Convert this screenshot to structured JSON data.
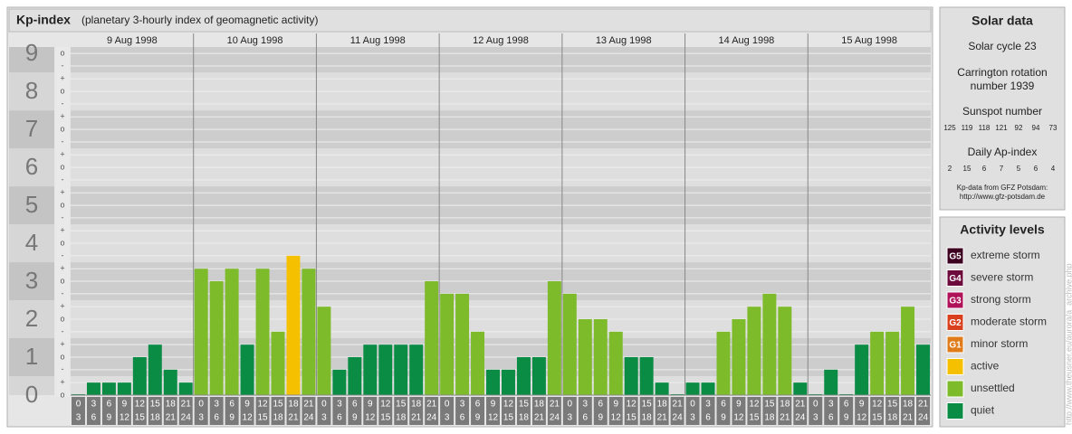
{
  "chart_data": {
    "type": "bar",
    "title": "Kp-index",
    "subtitle": "(planetary 3-hourly index of geomagnetic activity)",
    "ylim": [
      0,
      9.17
    ],
    "yticks": [
      0,
      1,
      2,
      3,
      4,
      5,
      6,
      7,
      8,
      9
    ],
    "minor_yticks": [
      {
        "value": 9,
        "label": "o"
      },
      {
        "value": 8.67,
        "label": "-"
      },
      {
        "value": 8.33,
        "label": "+"
      },
      {
        "value": 8,
        "label": "o"
      },
      {
        "value": 7.67,
        "label": "-"
      },
      {
        "value": 7.33,
        "label": "+"
      },
      {
        "value": 7,
        "label": "o"
      },
      {
        "value": 6.67,
        "label": "-"
      },
      {
        "value": 6.33,
        "label": "+"
      },
      {
        "value": 6,
        "label": "o"
      },
      {
        "value": 5.67,
        "label": "-"
      },
      {
        "value": 5.33,
        "label": "+"
      },
      {
        "value": 5,
        "label": "o"
      },
      {
        "value": 4.67,
        "label": "-"
      },
      {
        "value": 4.33,
        "label": "+"
      },
      {
        "value": 4,
        "label": "o"
      },
      {
        "value": 3.67,
        "label": "-"
      },
      {
        "value": 3.33,
        "label": "+"
      },
      {
        "value": 3,
        "label": "o"
      },
      {
        "value": 2.67,
        "label": "-"
      },
      {
        "value": 2.33,
        "label": "+"
      },
      {
        "value": 2,
        "label": "o"
      },
      {
        "value": 1.67,
        "label": "-"
      },
      {
        "value": 1.33,
        "label": "+"
      },
      {
        "value": 1,
        "label": "o"
      },
      {
        "value": 0.67,
        "label": "-"
      },
      {
        "value": 0.33,
        "label": "+"
      },
      {
        "value": 0,
        "label": "o"
      }
    ],
    "grid": true,
    "intervals": [
      [
        "0",
        "3"
      ],
      [
        "3",
        "6"
      ],
      [
        "6",
        "9"
      ],
      [
        "9",
        "12"
      ],
      [
        "12",
        "15"
      ],
      [
        "15",
        "18"
      ],
      [
        "18",
        "21"
      ],
      [
        "21",
        "24"
      ]
    ],
    "days": [
      {
        "label": "9 Aug 1998",
        "values": [
          0,
          0.33,
          0.33,
          0.33,
          1,
          1.33,
          0.67,
          0.33
        ],
        "colors": [
          "#0a8c45",
          "#0a8c45",
          "#0a8c45",
          "#0a8c45",
          "#0a8c45",
          "#0a8c45",
          "#0a8c45",
          "#0a8c45"
        ]
      },
      {
        "label": "10 Aug 1998",
        "values": [
          3.33,
          3,
          3.33,
          1.33,
          3.33,
          1.67,
          3.67,
          3.33
        ],
        "colors": [
          "#7dbb2a",
          "#7dbb2a",
          "#7dbb2a",
          "#0a8c45",
          "#7dbb2a",
          "#7dbb2a",
          "#f5c000",
          "#7dbb2a"
        ]
      },
      {
        "label": "11 Aug 1998",
        "values": [
          2.33,
          0.67,
          1,
          1.33,
          1.33,
          1.33,
          1.33,
          3
        ],
        "colors": [
          "#7dbb2a",
          "#0a8c45",
          "#0a8c45",
          "#0a8c45",
          "#0a8c45",
          "#0a8c45",
          "#0a8c45",
          "#7dbb2a"
        ]
      },
      {
        "label": "12 Aug 1998",
        "values": [
          2.67,
          2.67,
          1.67,
          0.67,
          0.67,
          1,
          1,
          3
        ],
        "colors": [
          "#7dbb2a",
          "#7dbb2a",
          "#7dbb2a",
          "#0a8c45",
          "#0a8c45",
          "#0a8c45",
          "#0a8c45",
          "#7dbb2a"
        ]
      },
      {
        "label": "13 Aug 1998",
        "values": [
          2.67,
          2,
          2,
          1.67,
          1,
          1,
          0.33,
          0
        ],
        "colors": [
          "#7dbb2a",
          "#7dbb2a",
          "#7dbb2a",
          "#7dbb2a",
          "#0a8c45",
          "#0a8c45",
          "#0a8c45",
          "#0a8c45"
        ]
      },
      {
        "label": "14 Aug 1998",
        "values": [
          0.33,
          0.33,
          1.67,
          2,
          2.33,
          2.67,
          2.33,
          0.33
        ],
        "colors": [
          "#0a8c45",
          "#0a8c45",
          "#7dbb2a",
          "#7dbb2a",
          "#7dbb2a",
          "#7dbb2a",
          "#7dbb2a",
          "#0a8c45"
        ]
      },
      {
        "label": "15 Aug 1998",
        "values": [
          0,
          0.67,
          0,
          1.33,
          1.67,
          1.67,
          2.33,
          1.33
        ],
        "colors": [
          "#0a8c45",
          "#0a8c45",
          "#0a8c45",
          "#0a8c45",
          "#7dbb2a",
          "#7dbb2a",
          "#7dbb2a",
          "#0a8c45"
        ]
      }
    ]
  },
  "solar_data": {
    "title": "Solar data",
    "solar_cycle": "Solar cycle 23",
    "carrington": [
      "Carrington rotation",
      "number 1939"
    ],
    "sunspot_label": "Sunspot number",
    "sunspot_numbers": [
      125,
      119,
      118,
      121,
      92,
      94,
      73
    ],
    "ap_label": "Daily Ap-index",
    "ap_values": [
      2,
      15,
      6,
      7,
      5,
      6,
      4
    ],
    "source": [
      "Kp-data from GFZ Potsdam:",
      "http://www.gfz-potsdam.de"
    ]
  },
  "activity_levels": {
    "title": "Activity levels",
    "items": [
      {
        "badge": "G5",
        "name": "extreme storm",
        "color": "#3e0020"
      },
      {
        "badge": "G4",
        "name": "severe storm",
        "color": "#6c0b3c"
      },
      {
        "badge": "G3",
        "name": "strong storm",
        "color": "#b0125a"
      },
      {
        "badge": "G2",
        "name": "moderate storm",
        "color": "#d9401e"
      },
      {
        "badge": "G1",
        "name": "minor storm",
        "color": "#e07b1a"
      },
      {
        "name": "active",
        "color": "#f5c000"
      },
      {
        "name": "unsettled",
        "color": "#7dbb2a"
      },
      {
        "name": "quiet",
        "color": "#0a8c45"
      }
    ]
  },
  "watermark": "http://www.theusner.eu/aurora/a_archive.php"
}
